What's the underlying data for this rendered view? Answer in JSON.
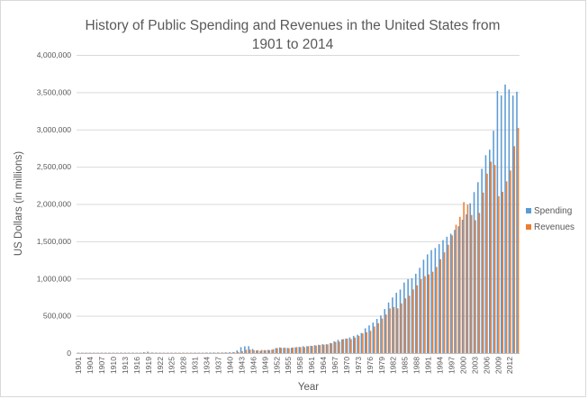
{
  "chart_data": {
    "type": "bar",
    "title": "History of Public Spending and Revenues in the United States from 1901 to 2014",
    "xlabel": "Year",
    "ylabel": "US Dollars (in millions)",
    "ylim": [
      0,
      4000000
    ],
    "yticks": [
      "0",
      "500,000",
      "1,000,000",
      "1,500,000",
      "2,000,000",
      "2,500,000",
      "3,000,000",
      "3,500,000",
      "4,000,000"
    ],
    "ytick_values": [
      0,
      500000,
      1000000,
      1500000,
      2000000,
      2500000,
      3000000,
      3500000,
      4000000
    ],
    "xtick_labels": [
      "1901",
      "1904",
      "1907",
      "1910",
      "1913",
      "1916",
      "1919",
      "1922",
      "1925",
      "1928",
      "1931",
      "1934",
      "1937",
      "1940",
      "1943",
      "1946",
      "1949",
      "1952",
      "1955",
      "1958",
      "1961",
      "1964",
      "1967",
      "1970",
      "1973",
      "1976",
      "1979",
      "1982",
      "1985",
      "1988",
      "1991",
      "1994",
      "1997",
      "2000",
      "2003",
      "2006",
      "2009",
      "2012"
    ],
    "grid": "horizontal",
    "legend_position": "right",
    "categories": [
      1901,
      1902,
      1903,
      1904,
      1905,
      1906,
      1907,
      1908,
      1909,
      1910,
      1911,
      1912,
      1913,
      1914,
      1915,
      1916,
      1917,
      1918,
      1919,
      1920,
      1921,
      1922,
      1923,
      1924,
      1925,
      1926,
      1927,
      1928,
      1929,
      1930,
      1931,
      1932,
      1933,
      1934,
      1935,
      1936,
      1937,
      1938,
      1939,
      1940,
      1941,
      1942,
      1943,
      1944,
      1945,
      1946,
      1947,
      1948,
      1949,
      1950,
      1951,
      1952,
      1953,
      1954,
      1955,
      1956,
      1957,
      1958,
      1959,
      1960,
      1961,
      1962,
      1963,
      1964,
      1965,
      1966,
      1967,
      1968,
      1969,
      1970,
      1971,
      1972,
      1973,
      1974,
      1975,
      1976,
      1977,
      1978,
      1979,
      1980,
      1981,
      1982,
      1983,
      1984,
      1985,
      1986,
      1987,
      1988,
      1989,
      1990,
      1991,
      1992,
      1993,
      1994,
      1995,
      1996,
      1997,
      1998,
      1999,
      2000,
      2001,
      2002,
      2003,
      2004,
      2005,
      2006,
      2007,
      2008,
      2009,
      2010,
      2011,
      2012,
      2013,
      2014
    ],
    "series": [
      {
        "name": "Spending",
        "color": "#5b9bd5",
        "values": [
          500,
          500,
          500,
          600,
          600,
          600,
          600,
          700,
          700,
          700,
          700,
          700,
          700,
          700,
          800,
          700,
          2000,
          12700,
          18500,
          6400,
          5100,
          3300,
          3300,
          2900,
          2900,
          2900,
          2900,
          3000,
          3100,
          3300,
          3600,
          4700,
          4600,
          6500,
          6400,
          8200,
          7600,
          6800,
          9100,
          9500,
          13700,
          35100,
          78600,
          91300,
          92700,
          55200,
          34500,
          29800,
          38800,
          42600,
          45500,
          67700,
          76100,
          70900,
          68400,
          70600,
          76600,
          82400,
          92100,
          92200,
          97700,
          106800,
          111300,
          118500,
          118200,
          134500,
          157500,
          178100,
          183600,
          195600,
          210200,
          230700,
          245700,
          269400,
          332300,
          371800,
          409200,
          458700,
          504000,
          590900,
          678200,
          745700,
          808400,
          851800,
          946300,
          990400,
          1004000,
          1064400,
          1143700,
          1253000,
          1324200,
          1381500,
          1409400,
          1461800,
          1515700,
          1560500,
          1601100,
          1652500,
          1701800,
          1789000,
          1862800,
          2010900,
          2159900,
          2292800,
          2472000,
          2655100,
          2728700,
          2982500,
          3517700,
          3457100,
          3603100,
          3537000,
          3454600,
          3506100
        ]
      },
      {
        "name": "Revenues",
        "color": "#ed7d31",
        "values": [
          600,
          600,
          600,
          500,
          500,
          600,
          700,
          600,
          600,
          700,
          700,
          700,
          700,
          700,
          700,
          800,
          1100,
          3600,
          5100,
          6600,
          5600,
          4000,
          3900,
          3900,
          3600,
          3800,
          4000,
          3900,
          3900,
          4100,
          3100,
          1900,
          2000,
          3000,
          3600,
          3900,
          5400,
          6800,
          6300,
          6500,
          8700,
          14600,
          24000,
          43700,
          45200,
          39300,
          38500,
          41600,
          39400,
          39400,
          51600,
          66200,
          69600,
          69700,
          65500,
          74600,
          80000,
          79600,
          79200,
          92500,
          94400,
          99700,
          106600,
          112600,
          116800,
          130800,
          148800,
          153000,
          186900,
          192800,
          187100,
          207300,
          230800,
          263200,
          279100,
          298100,
          355600,
          399600,
          463300,
          517100,
          599300,
          617800,
          600600,
          666400,
          734000,
          769200,
          854300,
          909200,
          991100,
          1032000,
          1055000,
          1091200,
          1154300,
          1258600,
          1351800,
          1453100,
          1579200,
          1721700,
          1827500,
          2025200,
          1991100,
          1853100,
          1782300,
          1880100,
          2153600,
          2406900,
          2568000,
          2524000,
          2105000,
          2162700,
          2303500,
          2450000,
          2775100,
          3021500
        ]
      }
    ]
  }
}
